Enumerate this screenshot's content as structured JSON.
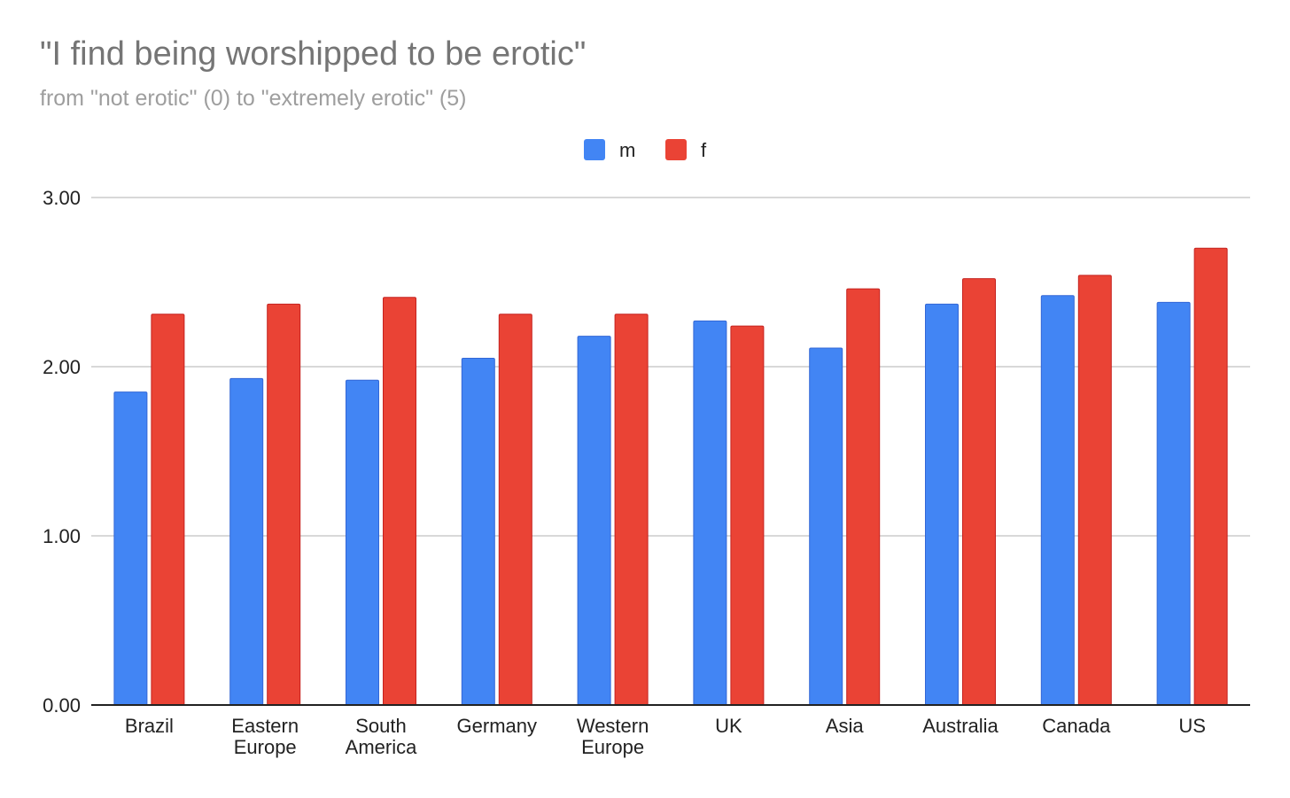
{
  "chart_data": {
    "type": "bar",
    "title": "\"I find being worshipped to be erotic\"",
    "subtitle": "from \"not erotic\" (0) to \"extremely erotic\" (5)",
    "categories": [
      [
        "Brazil"
      ],
      [
        "Eastern",
        "Europe"
      ],
      [
        "South",
        "America"
      ],
      [
        "Germany"
      ],
      [
        "Western",
        "Europe"
      ],
      [
        "UK"
      ],
      [
        "Asia"
      ],
      [
        "Australia"
      ],
      [
        "Canada"
      ],
      [
        "US"
      ]
    ],
    "series": [
      {
        "name": "m",
        "color": "#4285f4",
        "values": [
          1.85,
          1.93,
          1.92,
          2.05,
          2.18,
          2.27,
          2.11,
          2.37,
          2.42,
          2.38
        ]
      },
      {
        "name": "f",
        "color": "#ea4335",
        "values": [
          2.31,
          2.37,
          2.41,
          2.31,
          2.31,
          2.24,
          2.46,
          2.52,
          2.54,
          2.7
        ]
      }
    ],
    "ylim": [
      0,
      3
    ],
    "yticks": [
      "0.00",
      "1.00",
      "2.00",
      "3.00"
    ],
    "grid": true,
    "legend_position": "top-center"
  }
}
